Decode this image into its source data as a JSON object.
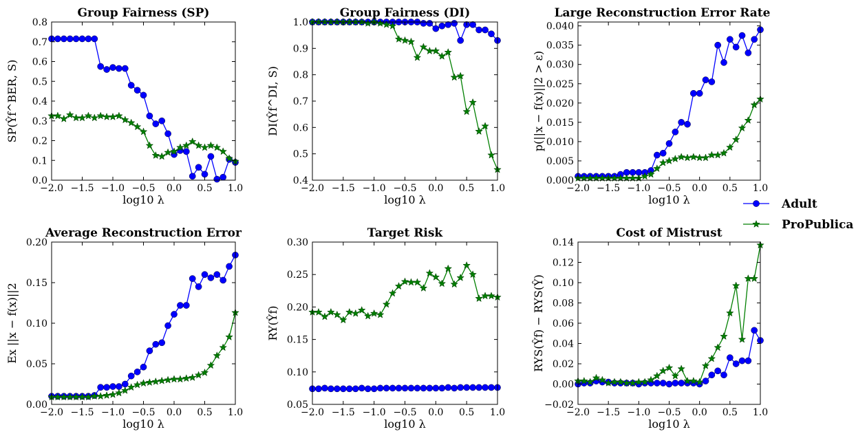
{
  "chart_data": [
    {
      "type": "line",
      "title": "Group Fairness (SP)",
      "xlabel": "log10 λ",
      "ylabel": "SP(Ŷf^BER, S)",
      "xlim": [
        -2.0,
        1.0
      ],
      "ylim": [
        0.0,
        0.8
      ],
      "x_ticks": [
        "-2.0",
        "-1.5",
        "-1.0",
        "-0.5",
        "0.0",
        "0.5",
        "1.0"
      ],
      "y_ticks": [
        "0.0",
        "0.1",
        "0.2",
        "0.3",
        "0.4",
        "0.5",
        "0.6",
        "0.7",
        "0.8"
      ],
      "grid": false,
      "series": [
        {
          "name": "Adult",
          "color": "#0000ff",
          "marker": "circle",
          "x": [
            -2.0,
            -1.9,
            -1.8,
            -1.7,
            -1.6,
            -1.5,
            -1.4,
            -1.3,
            -1.2,
            -1.1,
            -1.0,
            -0.9,
            -0.8,
            -0.7,
            -0.6,
            -0.5,
            -0.4,
            -0.3,
            -0.2,
            -0.1,
            0.0,
            0.1,
            0.2,
            0.3,
            0.4,
            0.5,
            0.6,
            0.7,
            0.8,
            0.9,
            1.0
          ],
          "values": [
            0.715,
            0.715,
            0.715,
            0.715,
            0.715,
            0.715,
            0.715,
            0.715,
            0.575,
            0.56,
            0.57,
            0.565,
            0.565,
            0.48,
            0.455,
            0.43,
            0.325,
            0.285,
            0.3,
            0.235,
            0.13,
            0.15,
            0.145,
            0.02,
            0.065,
            0.03,
            0.12,
            0.005,
            0.015,
            0.105,
            0.09
          ]
        },
        {
          "name": "ProPublica",
          "color": "#007f00",
          "marker": "star",
          "x": [
            -2.0,
            -1.9,
            -1.8,
            -1.7,
            -1.6,
            -1.5,
            -1.4,
            -1.3,
            -1.2,
            -1.1,
            -1.0,
            -0.9,
            -0.8,
            -0.7,
            -0.6,
            -0.5,
            -0.4,
            -0.3,
            -0.2,
            -0.1,
            0.0,
            0.1,
            0.2,
            0.3,
            0.4,
            0.5,
            0.6,
            0.7,
            0.8,
            0.9,
            1.0
          ],
          "values": [
            0.325,
            0.325,
            0.31,
            0.33,
            0.315,
            0.315,
            0.325,
            0.315,
            0.325,
            0.32,
            0.32,
            0.325,
            0.305,
            0.29,
            0.27,
            0.245,
            0.175,
            0.125,
            0.12,
            0.14,
            0.145,
            0.165,
            0.175,
            0.195,
            0.175,
            0.165,
            0.175,
            0.165,
            0.145,
            0.11,
            0.095
          ]
        }
      ]
    },
    {
      "type": "line",
      "title": "Group Fairness (DI)",
      "xlabel": "log10 λ",
      "ylabel": "DI(Ŷf^DI, S)",
      "xlim": [
        -2.0,
        1.0
      ],
      "ylim": [
        0.4,
        1.0
      ],
      "x_ticks": [
        "-2.0",
        "-1.5",
        "-1.0",
        "-0.5",
        "0.0",
        "0.5",
        "1.0"
      ],
      "y_ticks": [
        "0.4",
        "0.5",
        "0.6",
        "0.7",
        "0.8",
        "0.9",
        "1.0"
      ],
      "grid": false,
      "series": [
        {
          "name": "Adult",
          "color": "#0000ff",
          "marker": "circle",
          "x": [
            -2.0,
            -1.9,
            -1.8,
            -1.7,
            -1.6,
            -1.5,
            -1.4,
            -1.3,
            -1.2,
            -1.1,
            -1.0,
            -0.9,
            -0.8,
            -0.7,
            -0.6,
            -0.5,
            -0.4,
            -0.3,
            -0.2,
            -0.1,
            0.0,
            0.1,
            0.2,
            0.3,
            0.4,
            0.5,
            0.6,
            0.7,
            0.8,
            0.9,
            1.0
          ],
          "values": [
            1.0,
            1.0,
            1.0,
            1.0,
            1.0,
            1.0,
            1.0,
            1.0,
            1.0,
            1.0,
            1.0,
            1.0,
            1.0,
            1.0,
            1.0,
            1.0,
            1.0,
            1.0,
            0.995,
            0.995,
            0.975,
            0.985,
            0.99,
            0.995,
            0.93,
            0.99,
            0.99,
            0.97,
            0.97,
            0.955,
            0.93
          ]
        },
        {
          "name": "ProPublica",
          "color": "#007f00",
          "marker": "star",
          "x": [
            -2.0,
            -1.9,
            -1.8,
            -1.7,
            -1.6,
            -1.5,
            -1.4,
            -1.3,
            -1.2,
            -1.1,
            -1.0,
            -0.9,
            -0.8,
            -0.7,
            -0.6,
            -0.5,
            -0.4,
            -0.3,
            -0.2,
            -0.1,
            0.0,
            0.1,
            0.2,
            0.3,
            0.4,
            0.5,
            0.6,
            0.7,
            0.8,
            0.9,
            1.0
          ],
          "values": [
            1.0,
            1.0,
            1.0,
            1.0,
            1.0,
            1.0,
            1.0,
            1.0,
            1.0,
            0.995,
            1.0,
            0.995,
            0.99,
            0.985,
            0.935,
            0.93,
            0.925,
            0.865,
            0.905,
            0.89,
            0.89,
            0.87,
            0.885,
            0.79,
            0.795,
            0.66,
            0.695,
            0.585,
            0.605,
            0.495,
            0.44
          ]
        }
      ]
    },
    {
      "type": "line",
      "title": "Large Reconstruction Error Rate",
      "xlabel": "log10 λ",
      "ylabel": "p(||x − f(x)||2 > ε)",
      "xlim": [
        -2.0,
        1.0
      ],
      "ylim": [
        0.0,
        0.041
      ],
      "x_ticks": [
        "-2.0",
        "-1.5",
        "-1.0",
        "-0.5",
        "0.0",
        "0.5",
        "1.0"
      ],
      "y_ticks": [
        "0.000",
        "0.005",
        "0.010",
        "0.015",
        "0.020",
        "0.025",
        "0.030",
        "0.035",
        "0.040"
      ],
      "grid": false,
      "series": [
        {
          "name": "Adult",
          "color": "#0000ff",
          "marker": "circle",
          "x": [
            -2.0,
            -1.9,
            -1.8,
            -1.7,
            -1.6,
            -1.5,
            -1.4,
            -1.3,
            -1.2,
            -1.1,
            -1.0,
            -0.9,
            -0.8,
            -0.7,
            -0.6,
            -0.5,
            -0.4,
            -0.3,
            -0.2,
            -0.1,
            0.0,
            0.1,
            0.2,
            0.3,
            0.4,
            0.5,
            0.6,
            0.7,
            0.8,
            0.9,
            1.0
          ],
          "values": [
            0.001,
            0.001,
            0.001,
            0.001,
            0.001,
            0.001,
            0.001,
            0.0015,
            0.002,
            0.002,
            0.002,
            0.002,
            0.0025,
            0.0065,
            0.007,
            0.0095,
            0.0125,
            0.015,
            0.0145,
            0.0225,
            0.0225,
            0.026,
            0.0255,
            0.035,
            0.0305,
            0.0365,
            0.0345,
            0.0375,
            0.033,
            0.0365,
            0.039
          ]
        },
        {
          "name": "ProPublica",
          "color": "#007f00",
          "marker": "star",
          "x": [
            -2.0,
            -1.9,
            -1.8,
            -1.7,
            -1.6,
            -1.5,
            -1.4,
            -1.3,
            -1.2,
            -1.1,
            -1.0,
            -0.9,
            -0.8,
            -0.7,
            -0.6,
            -0.5,
            -0.4,
            -0.3,
            -0.2,
            -0.1,
            0.0,
            0.1,
            0.2,
            0.3,
            0.4,
            0.5,
            0.6,
            0.7,
            0.8,
            0.9,
            1.0
          ],
          "values": [
            0.0005,
            0.0005,
            0.0005,
            0.0005,
            0.0005,
            0.0005,
            0.0005,
            0.0005,
            0.0005,
            0.0005,
            0.0005,
            0.001,
            0.0015,
            0.003,
            0.0045,
            0.005,
            0.0055,
            0.006,
            0.0058,
            0.006,
            0.0058,
            0.0058,
            0.0065,
            0.0065,
            0.007,
            0.0085,
            0.0105,
            0.0135,
            0.0155,
            0.0195,
            0.021
          ]
        }
      ]
    },
    {
      "type": "line",
      "title": "Average Reconstruction Error",
      "xlabel": "log10 λ",
      "ylabel": "Ex ||x − f(x)||2",
      "xlim": [
        -2.0,
        1.0
      ],
      "ylim": [
        0.0,
        0.2
      ],
      "x_ticks": [
        "-2.0",
        "-1.5",
        "-1.0",
        "-0.5",
        "0.0",
        "0.5",
        "1.0"
      ],
      "y_ticks": [
        "0.00",
        "0.05",
        "0.10",
        "0.15",
        "0.20"
      ],
      "grid": false,
      "series": [
        {
          "name": "Adult",
          "color": "#0000ff",
          "marker": "circle",
          "x": [
            -2.0,
            -1.9,
            -1.8,
            -1.7,
            -1.6,
            -1.5,
            -1.4,
            -1.3,
            -1.2,
            -1.1,
            -1.0,
            -0.9,
            -0.8,
            -0.7,
            -0.6,
            -0.5,
            -0.4,
            -0.3,
            -0.2,
            -0.1,
            0.0,
            0.1,
            0.2,
            0.3,
            0.4,
            0.5,
            0.6,
            0.7,
            0.8,
            0.9,
            1.0
          ],
          "values": [
            0.01,
            0.01,
            0.01,
            0.01,
            0.01,
            0.01,
            0.01,
            0.011,
            0.021,
            0.021,
            0.022,
            0.022,
            0.025,
            0.035,
            0.04,
            0.046,
            0.066,
            0.074,
            0.076,
            0.097,
            0.111,
            0.122,
            0.122,
            0.155,
            0.145,
            0.16,
            0.156,
            0.16,
            0.153,
            0.17,
            0.184
          ]
        },
        {
          "name": "ProPublica",
          "color": "#007f00",
          "marker": "star",
          "x": [
            -2.0,
            -1.9,
            -1.8,
            -1.7,
            -1.6,
            -1.5,
            -1.4,
            -1.3,
            -1.2,
            -1.1,
            -1.0,
            -0.9,
            -0.8,
            -0.7,
            -0.6,
            -0.5,
            -0.4,
            -0.3,
            -0.2,
            -0.1,
            0.0,
            0.1,
            0.2,
            0.3,
            0.4,
            0.5,
            0.6,
            0.7,
            0.8,
            0.9,
            1.0
          ],
          "values": [
            0.009,
            0.009,
            0.009,
            0.009,
            0.009,
            0.009,
            0.009,
            0.01,
            0.01,
            0.011,
            0.012,
            0.014,
            0.017,
            0.021,
            0.024,
            0.026,
            0.027,
            0.028,
            0.029,
            0.03,
            0.031,
            0.031,
            0.032,
            0.033,
            0.036,
            0.039,
            0.048,
            0.06,
            0.07,
            0.083,
            0.113
          ]
        }
      ]
    },
    {
      "type": "line",
      "title": "Target Risk",
      "xlabel": "log10 λ",
      "ylabel": "RY(Ŷf)",
      "xlim": [
        -2.0,
        1.0
      ],
      "ylim": [
        0.05,
        0.3
      ],
      "x_ticks": [
        "-2.0",
        "-1.5",
        "-1.0",
        "-0.5",
        "0.0",
        "0.5",
        "1.0"
      ],
      "y_ticks": [
        "0.05",
        "0.10",
        "0.15",
        "0.20",
        "0.25",
        "0.30"
      ],
      "grid": false,
      "series": [
        {
          "name": "Adult",
          "color": "#0000ff",
          "marker": "circle",
          "x": [
            -2.0,
            -1.9,
            -1.8,
            -1.7,
            -1.6,
            -1.5,
            -1.4,
            -1.3,
            -1.2,
            -1.1,
            -1.0,
            -0.9,
            -0.8,
            -0.7,
            -0.6,
            -0.5,
            -0.4,
            -0.3,
            -0.2,
            -0.1,
            0.0,
            0.1,
            0.2,
            0.3,
            0.4,
            0.5,
            0.6,
            0.7,
            0.8,
            0.9,
            1.0
          ],
          "values": [
            0.074,
            0.074,
            0.075,
            0.074,
            0.074,
            0.074,
            0.074,
            0.074,
            0.075,
            0.074,
            0.074,
            0.075,
            0.075,
            0.075,
            0.075,
            0.075,
            0.075,
            0.075,
            0.075,
            0.075,
            0.075,
            0.075,
            0.076,
            0.075,
            0.076,
            0.076,
            0.076,
            0.076,
            0.076,
            0.076,
            0.076
          ]
        },
        {
          "name": "ProPublica",
          "color": "#007f00",
          "marker": "star",
          "x": [
            -2.0,
            -1.9,
            -1.8,
            -1.7,
            -1.6,
            -1.5,
            -1.4,
            -1.3,
            -1.2,
            -1.1,
            -1.0,
            -0.9,
            -0.8,
            -0.7,
            -0.6,
            -0.5,
            -0.4,
            -0.3,
            -0.2,
            -0.1,
            0.0,
            0.1,
            0.2,
            0.3,
            0.4,
            0.5,
            0.6,
            0.7,
            0.8,
            0.9,
            1.0
          ],
          "values": [
            0.192,
            0.192,
            0.185,
            0.192,
            0.188,
            0.18,
            0.192,
            0.19,
            0.195,
            0.186,
            0.19,
            0.188,
            0.204,
            0.221,
            0.232,
            0.239,
            0.238,
            0.238,
            0.229,
            0.252,
            0.246,
            0.236,
            0.259,
            0.235,
            0.245,
            0.264,
            0.25,
            0.213,
            0.217,
            0.217,
            0.215
          ]
        }
      ]
    },
    {
      "type": "line",
      "title": "Cost of Mistrust",
      "xlabel": "log10 λ",
      "ylabel": "RYS(Ŷf) − RYS(Ŷ)",
      "xlim": [
        -2.0,
        1.0
      ],
      "ylim": [
        -0.02,
        0.14
      ],
      "x_ticks": [
        "-2.0",
        "-1.5",
        "-1.0",
        "-0.5",
        "0.0",
        "0.5",
        "1.0"
      ],
      "y_ticks": [
        "−0.02",
        "0.00",
        "0.02",
        "0.04",
        "0.06",
        "0.08",
        "0.10",
        "0.12",
        "0.14"
      ],
      "grid": false,
      "series": [
        {
          "name": "Adult",
          "color": "#0000ff",
          "marker": "circle",
          "x": [
            -2.0,
            -1.9,
            -1.8,
            -1.7,
            -1.6,
            -1.5,
            -1.4,
            -1.3,
            -1.2,
            -1.1,
            -1.0,
            -0.9,
            -0.8,
            -0.7,
            -0.6,
            -0.5,
            -0.4,
            -0.3,
            -0.2,
            -0.1,
            0.0,
            0.1,
            0.2,
            0.3,
            0.4,
            0.5,
            0.6,
            0.7,
            0.8,
            0.9,
            1.0
          ],
          "values": [
            0.0,
            0.001,
            0.001,
            0.003,
            0.002,
            0.002,
            0.001,
            0.001,
            0.001,
            0.001,
            0.0,
            0.001,
            0.001,
            0.001,
            0.001,
            0.0,
            0.001,
            0.001,
            0.001,
            0.001,
            0.0,
            0.003,
            0.009,
            0.013,
            0.009,
            0.026,
            0.02,
            0.023,
            0.023,
            0.053,
            0.043
          ]
        },
        {
          "name": "ProPublica",
          "color": "#007f00",
          "marker": "star",
          "x": [
            -2.0,
            -1.9,
            -1.8,
            -1.7,
            -1.6,
            -1.5,
            -1.4,
            -1.3,
            -1.2,
            -1.1,
            -1.0,
            -0.9,
            -0.8,
            -0.7,
            -0.6,
            -0.5,
            -0.4,
            -0.3,
            -0.2,
            -0.1,
            0.0,
            0.1,
            0.2,
            0.3,
            0.4,
            0.5,
            0.6,
            0.7,
            0.8,
            0.9,
            1.0
          ],
          "values": [
            0.003,
            0.003,
            0.002,
            0.006,
            0.004,
            0.001,
            0.002,
            0.002,
            0.001,
            0.001,
            0.002,
            0.002,
            0.004,
            0.008,
            0.013,
            0.016,
            0.008,
            0.015,
            0.003,
            0.003,
            0.002,
            0.018,
            0.025,
            0.036,
            0.047,
            0.07,
            0.097,
            0.044,
            0.104,
            0.104,
            0.137
          ]
        }
      ]
    }
  ],
  "legend": {
    "placement": "right",
    "entries": [
      {
        "name": "Adult",
        "color": "#0000ff",
        "marker": "circle"
      },
      {
        "name": "ProPublica",
        "color": "#007f00",
        "marker": "star"
      }
    ]
  }
}
